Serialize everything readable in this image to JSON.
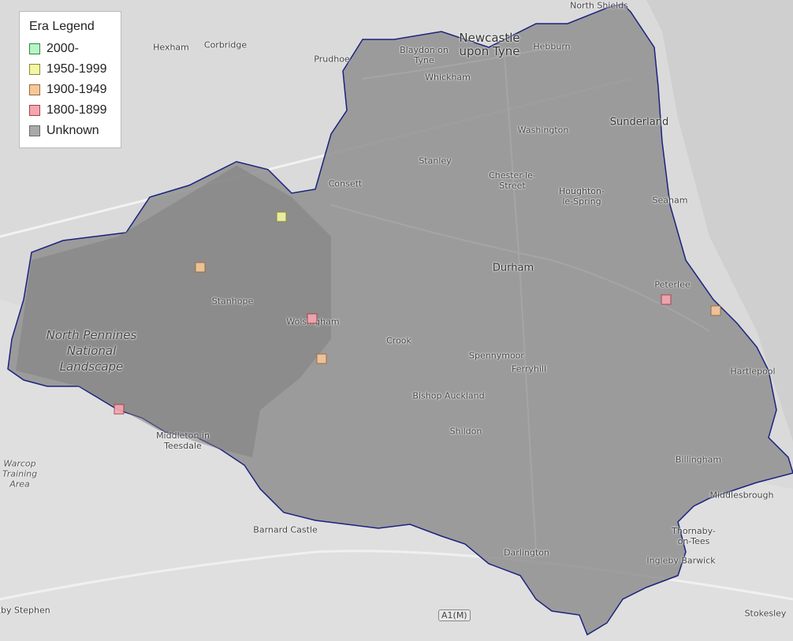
{
  "legend": {
    "title": "Era Legend",
    "items": [
      {
        "label": "2000-",
        "fill": "#b7f5c6",
        "stroke": "#2e8b3a"
      },
      {
        "label": "1950-1999",
        "fill": "#f3f6a6",
        "stroke": "#8a8a2a"
      },
      {
        "label": "1900-1949",
        "fill": "#f6c79a",
        "stroke": "#9a6a3a"
      },
      {
        "label": "1800-1899",
        "fill": "#f4a6b0",
        "stroke": "#a0404a"
      },
      {
        "label": "Unknown",
        "fill": "#a9a9a9",
        "stroke": "#6a6a6a"
      }
    ]
  },
  "region": {
    "fill": "#8f8f8f",
    "border": "#1a237e"
  },
  "places": [
    "North Shields",
    "Newcastle upon Tyne",
    "Hebburn",
    "Blaydon on Tyne",
    "Whickham",
    "Hexham",
    "Corbridge",
    "Prudhoe",
    "Washington",
    "Sunderland",
    "Stanley",
    "Chester-le-Street",
    "Houghton-le-Spring",
    "Consett",
    "Seaham",
    "Durham",
    "Peterlee",
    "Stanhope",
    "Wolsingham",
    "Crook",
    "Spennymoor",
    "Ferryhill",
    "Hartlepool",
    "Bishop Auckland",
    "Shildon",
    "Billingham",
    "Middlesbrough",
    "Middleton in Teesdale",
    "Warcop Training Area",
    "Barnard Castle",
    "Thornaby-on-Tees",
    "Darlington",
    "Ingleby Barwick",
    "Stokesley",
    "Kirkby Stephen",
    "North Pennines National Landscape"
  ],
  "road_shield": "A1(M)",
  "markers": [
    {
      "era": "1950-1999"
    },
    {
      "era": "1900-1949"
    },
    {
      "era": "1800-1899"
    },
    {
      "era": "1900-1949"
    },
    {
      "era": "1800-1899"
    },
    {
      "era": "1800-1899"
    },
    {
      "era": "1900-1949"
    }
  ]
}
